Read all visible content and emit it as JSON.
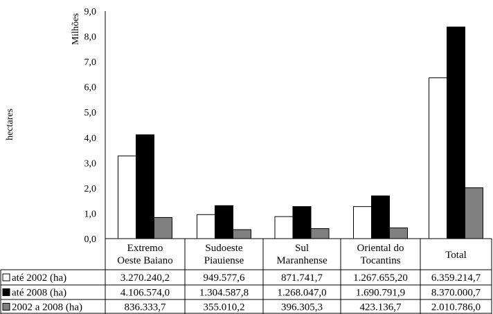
{
  "chart_data": {
    "type": "bar",
    "ylabel": "hectares",
    "yunit": "Milhões",
    "ylim": [
      0,
      9
    ],
    "yticks": [
      "0,0",
      "1,0",
      "2,0",
      "3,0",
      "4,0",
      "5,0",
      "6,0",
      "7,0",
      "8,0",
      "9,0"
    ],
    "grid": false,
    "categories": [
      [
        "Extremo",
        "Oeste Baiano"
      ],
      [
        "Sudoeste",
        "Piauiense"
      ],
      [
        "Sul",
        "Maranhense"
      ],
      [
        "Oriental do",
        "Tocantins"
      ],
      [
        "Total"
      ]
    ],
    "series": [
      {
        "name": "até 2002 (ha)",
        "color": "#ffffff",
        "values": [
          3270240.2,
          949577.6,
          871741.7,
          1267655.2,
          6359214.7
        ],
        "labels": [
          "3.270.240,2",
          "949.577,6",
          "871.741,7",
          "1.267.655,20",
          "6.359.214,7"
        ]
      },
      {
        "name": "até 2008 (ha)",
        "color": "#000000",
        "values": [
          4106574.0,
          1304587.8,
          1268047.0,
          1690791.9,
          8370000.7
        ],
        "labels": [
          "4.106.574,0",
          "1.304.587,8",
          "1.268.047,0",
          "1.690.791,9",
          "8.370.000,7"
        ]
      },
      {
        "name": "2002 a 2008 (ha)",
        "color": "#808080",
        "values": [
          836333.7,
          355010.2,
          396305.3,
          423136.7,
          2010786.0
        ],
        "labels": [
          "836.333,7",
          "355.010,2",
          "396.305,3",
          "423.136,7",
          "2.010.786,0"
        ]
      }
    ]
  }
}
